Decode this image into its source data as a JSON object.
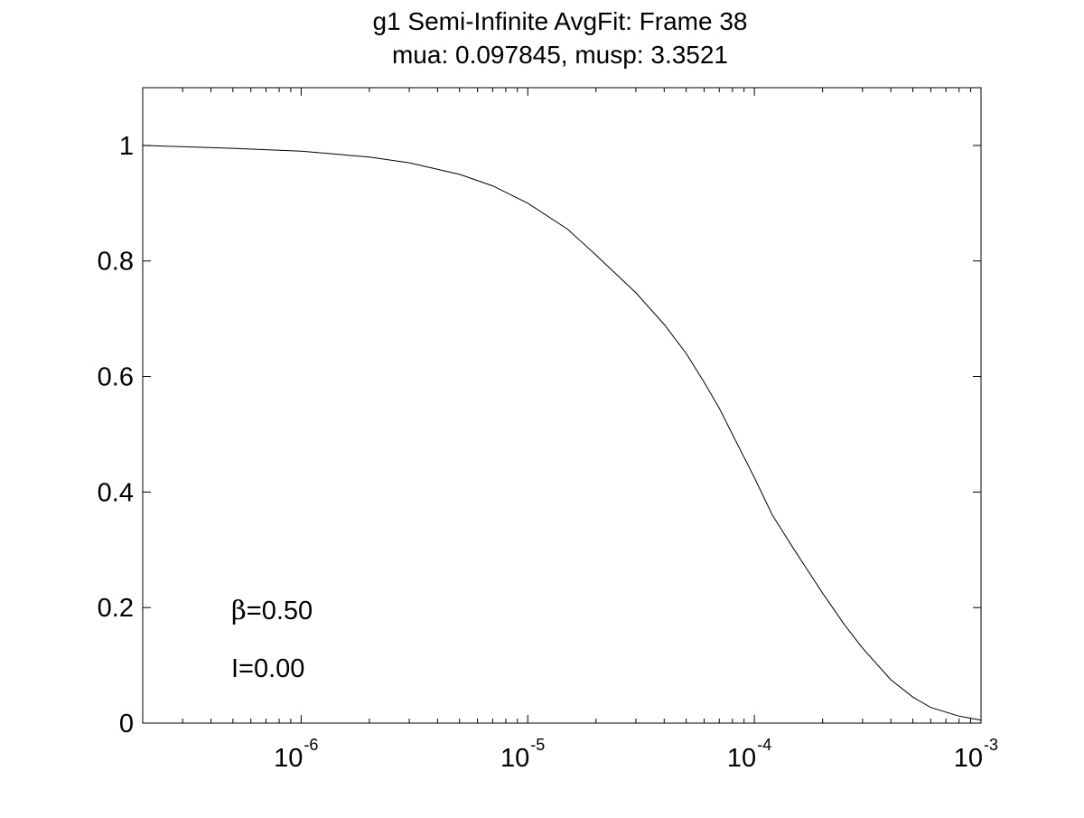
{
  "chart_data": {
    "type": "line",
    "title": "g1 Semi-Infinite AvgFit: Frame 38",
    "subtitle": "mua: 0.097845, musp: 3.3521",
    "xlabel": "",
    "ylabel": "",
    "xscale": "log",
    "xlim": [
      2e-07,
      0.001
    ],
    "ylim": [
      0,
      1.1
    ],
    "grid": false,
    "x_ticks": [
      {
        "base": "10",
        "exp": "-6",
        "value": 1e-06
      },
      {
        "base": "10",
        "exp": "-5",
        "value": 1e-05
      },
      {
        "base": "10",
        "exp": "-4",
        "value": 0.0001
      },
      {
        "base": "10",
        "exp": "-3",
        "value": 0.001
      }
    ],
    "y_ticks": [
      "0",
      "0.2",
      "0.4",
      "0.6",
      "0.8",
      "1"
    ],
    "series": [
      {
        "x": [
          2e-07,
          5e-07,
          1e-06,
          2e-06,
          3e-06,
          5e-06,
          7e-06,
          1e-05,
          1.5e-05,
          2e-05,
          3e-05,
          4e-05,
          5e-05,
          6e-05,
          7e-05,
          8e-05,
          0.0001,
          0.00012,
          0.00015,
          0.0002,
          0.00025,
          0.0003,
          0.0004,
          0.0005,
          0.0006,
          0.0008,
          0.001
        ],
        "y": [
          1.0,
          0.995,
          0.99,
          0.98,
          0.97,
          0.95,
          0.93,
          0.9,
          0.855,
          0.81,
          0.745,
          0.69,
          0.64,
          0.59,
          0.545,
          0.5,
          0.425,
          0.36,
          0.3,
          0.225,
          0.17,
          0.13,
          0.075,
          0.045,
          0.027,
          0.012,
          0.005
        ]
      }
    ],
    "annotations": [
      {
        "symbol": "β",
        "text": "=0.50"
      },
      {
        "symbol": "",
        "text": "I=0.00"
      }
    ],
    "colors": {
      "line": "#000000",
      "axes": "#000000",
      "background": "#ffffff"
    }
  }
}
